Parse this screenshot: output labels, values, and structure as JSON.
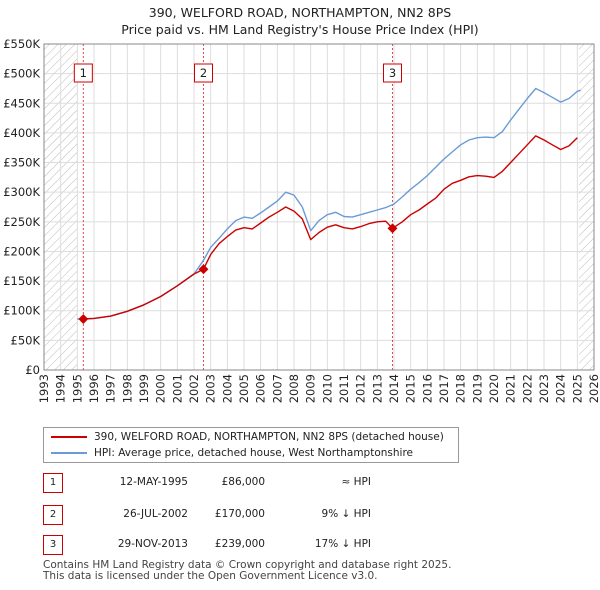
{
  "title_line1": "390, WELFORD ROAD, NORTHAMPTON, NN2 8PS",
  "title_line2": "Price paid vs. HM Land Registry's House Price Index (HPI)",
  "chart_data": {
    "type": "line",
    "x_unit": "year",
    "xlim": [
      1993,
      2026
    ],
    "ylim": [
      0,
      550000
    ],
    "x_ticks": [
      1993,
      1994,
      1995,
      1996,
      1997,
      1998,
      1999,
      2000,
      2001,
      2002,
      2003,
      2004,
      2005,
      2006,
      2007,
      2008,
      2009,
      2010,
      2011,
      2012,
      2013,
      2014,
      2015,
      2016,
      2017,
      2018,
      2019,
      2020,
      2021,
      2022,
      2023,
      2024,
      2025,
      2026
    ],
    "y_ticks": [
      {
        "value": 0,
        "label": "£0"
      },
      {
        "value": 50000,
        "label": "£50K"
      },
      {
        "value": 100000,
        "label": "£100K"
      },
      {
        "value": 150000,
        "label": "£150K"
      },
      {
        "value": 200000,
        "label": "£200K"
      },
      {
        "value": 250000,
        "label": "£250K"
      },
      {
        "value": 300000,
        "label": "£300K"
      },
      {
        "value": 350000,
        "label": "£350K"
      },
      {
        "value": 400000,
        "label": "£400K"
      },
      {
        "value": 450000,
        "label": "£450K"
      },
      {
        "value": 500000,
        "label": "£500K"
      },
      {
        "value": 550000,
        "label": "£550K"
      }
    ],
    "hatched_ranges": [
      [
        1993,
        1995.0
      ],
      [
        2025.1,
        2026
      ]
    ],
    "grid": true,
    "series": [
      {
        "name": "390, WELFORD ROAD, NORTHAMPTON, NN2 8PS (detached house)",
        "color": "#cc0000",
        "points": [
          [
            1995.36,
            86000
          ],
          [
            1996,
            87000
          ],
          [
            1997,
            91000
          ],
          [
            1998,
            99000
          ],
          [
            1999,
            110000
          ],
          [
            2000,
            124000
          ],
          [
            2001,
            142000
          ],
          [
            2002,
            162000
          ],
          [
            2002.57,
            170000
          ],
          [
            2003,
            195000
          ],
          [
            2003.5,
            213000
          ],
          [
            2004,
            225000
          ],
          [
            2004.5,
            236000
          ],
          [
            2005,
            240000
          ],
          [
            2005.5,
            238000
          ],
          [
            2006,
            248000
          ],
          [
            2006.5,
            258000
          ],
          [
            2007,
            266000
          ],
          [
            2007.5,
            275000
          ],
          [
            2008,
            268000
          ],
          [
            2008.5,
            255000
          ],
          [
            2009,
            220000
          ],
          [
            2009.5,
            232000
          ],
          [
            2010,
            241000
          ],
          [
            2010.5,
            245000
          ],
          [
            2011,
            240000
          ],
          [
            2011.5,
            238000
          ],
          [
            2012,
            242000
          ],
          [
            2012.5,
            247000
          ],
          [
            2013,
            250000
          ],
          [
            2013.5,
            251000
          ],
          [
            2013.91,
            239000
          ],
          [
            2014.5,
            250000
          ],
          [
            2015,
            262000
          ],
          [
            2015.5,
            270000
          ],
          [
            2016,
            280000
          ],
          [
            2016.5,
            290000
          ],
          [
            2017,
            305000
          ],
          [
            2017.5,
            315000
          ],
          [
            2018,
            320000
          ],
          [
            2018.5,
            326000
          ],
          [
            2019,
            328000
          ],
          [
            2019.5,
            327000
          ],
          [
            2020,
            325000
          ],
          [
            2020.5,
            335000
          ],
          [
            2021,
            350000
          ],
          [
            2021.5,
            365000
          ],
          [
            2022,
            380000
          ],
          [
            2022.5,
            395000
          ],
          [
            2023,
            388000
          ],
          [
            2023.5,
            380000
          ],
          [
            2024,
            372000
          ],
          [
            2024.5,
            378000
          ],
          [
            2025,
            392000
          ]
        ]
      },
      {
        "name": "HPI: Average price, detached house, West Northamptonshire",
        "color": "#6a9bd8",
        "points": [
          [
            1995,
            86000
          ],
          [
            1996,
            87000
          ],
          [
            1997,
            91000
          ],
          [
            1998,
            99000
          ],
          [
            1999,
            110000
          ],
          [
            2000,
            124000
          ],
          [
            2001,
            142000
          ],
          [
            2002,
            162000
          ],
          [
            2002.57,
            185000
          ],
          [
            2003,
            207000
          ],
          [
            2003.5,
            222000
          ],
          [
            2004,
            238000
          ],
          [
            2004.5,
            252000
          ],
          [
            2005,
            258000
          ],
          [
            2005.5,
            256000
          ],
          [
            2006,
            265000
          ],
          [
            2006.5,
            275000
          ],
          [
            2007,
            285000
          ],
          [
            2007.5,
            300000
          ],
          [
            2008,
            295000
          ],
          [
            2008.5,
            275000
          ],
          [
            2009,
            235000
          ],
          [
            2009.5,
            252000
          ],
          [
            2010,
            262000
          ],
          [
            2010.5,
            266000
          ],
          [
            2011,
            259000
          ],
          [
            2011.5,
            258000
          ],
          [
            2012,
            262000
          ],
          [
            2012.5,
            266000
          ],
          [
            2013,
            270000
          ],
          [
            2013.5,
            274000
          ],
          [
            2014,
            280000
          ],
          [
            2014.5,
            292000
          ],
          [
            2015,
            305000
          ],
          [
            2015.5,
            316000
          ],
          [
            2016,
            328000
          ],
          [
            2016.5,
            342000
          ],
          [
            2017,
            356000
          ],
          [
            2017.5,
            368000
          ],
          [
            2018,
            380000
          ],
          [
            2018.5,
            388000
          ],
          [
            2019,
            392000
          ],
          [
            2019.5,
            393000
          ],
          [
            2020,
            392000
          ],
          [
            2020.5,
            402000
          ],
          [
            2021,
            422000
          ],
          [
            2021.5,
            440000
          ],
          [
            2022,
            458000
          ],
          [
            2022.5,
            475000
          ],
          [
            2023,
            468000
          ],
          [
            2023.5,
            460000
          ],
          [
            2024,
            452000
          ],
          [
            2024.5,
            458000
          ],
          [
            2025,
            470000
          ],
          [
            2025.2,
            472000
          ]
        ]
      }
    ],
    "sales": [
      {
        "label": "1",
        "x": 1995.36,
        "y": 86000
      },
      {
        "label": "2",
        "x": 2002.57,
        "y": 170000
      },
      {
        "label": "3",
        "x": 2013.91,
        "y": 239000
      }
    ]
  },
  "legend": {
    "property": "390, WELFORD ROAD, NORTHAMPTON, NN2 8PS (detached house)",
    "hpi": "HPI: Average price, detached house, West Northamptonshire"
  },
  "sales_table": [
    {
      "num": "1",
      "date": "12-MAY-1995",
      "price": "£86,000",
      "hpi": "≈ HPI"
    },
    {
      "num": "2",
      "date": "26-JUL-2002",
      "price": "£170,000",
      "hpi": "9% ↓ HPI"
    },
    {
      "num": "3",
      "date": "29-NOV-2013",
      "price": "£239,000",
      "hpi": "17% ↓ HPI"
    }
  ],
  "footer_line1": "Contains HM Land Registry data © Crown copyright and database right 2025.",
  "footer_line2": "This data is licensed under the Open Government Licence v3.0.",
  "colors": {
    "property": "#cc0000",
    "hpi": "#6a9bd8",
    "grid": "#dddddd",
    "frame": "#888888"
  }
}
